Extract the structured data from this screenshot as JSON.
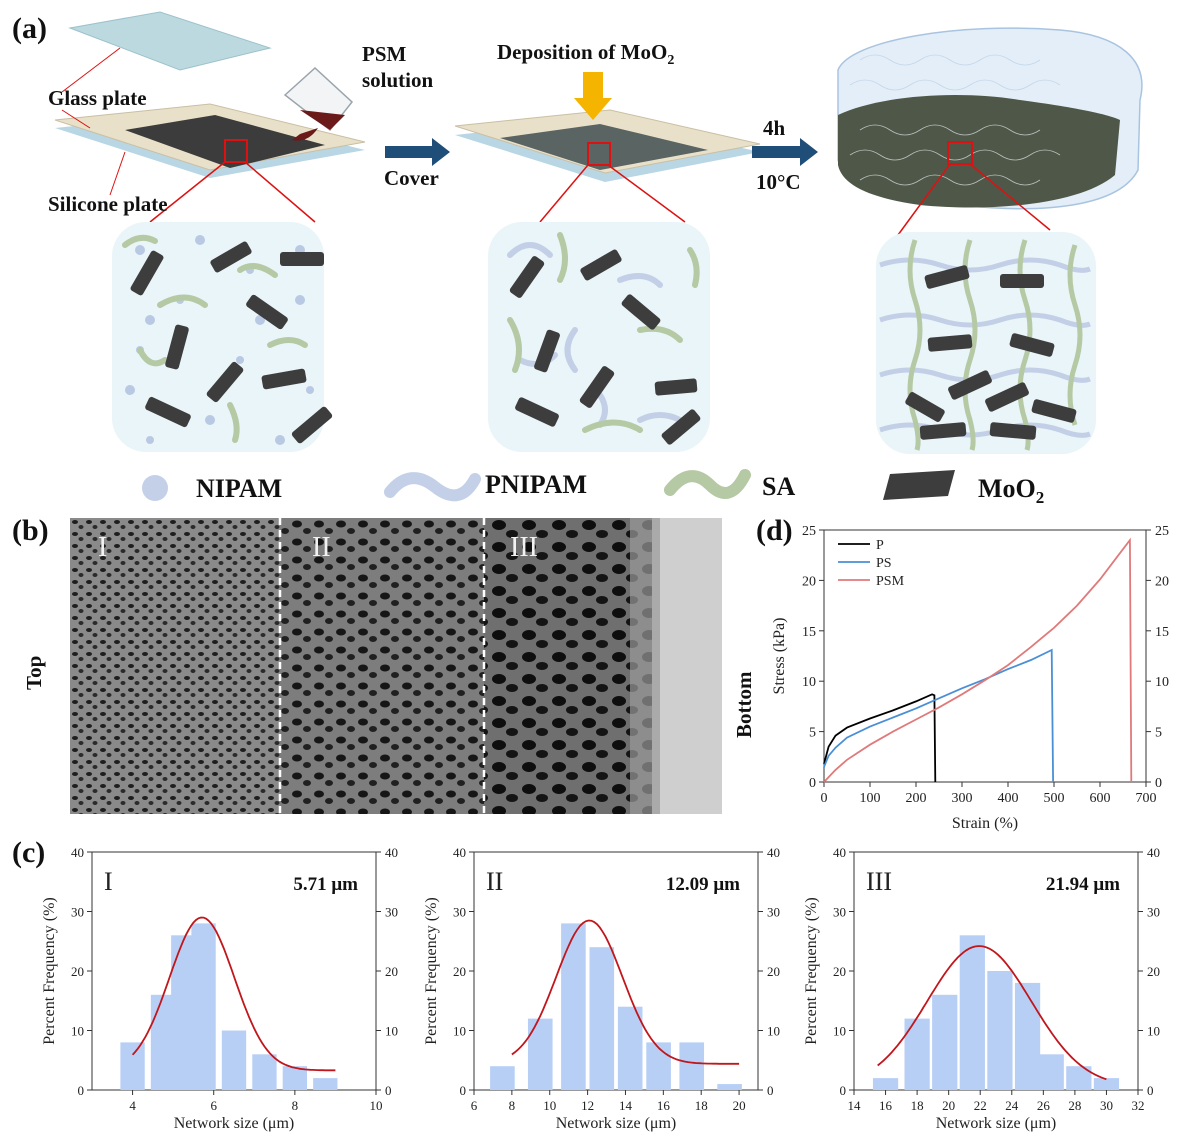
{
  "panel_a": {
    "label": "(a)",
    "glass_plate": "Glass plate",
    "silicone_plate": "Silicone plate",
    "psm_line1": "PSM",
    "psm_line2": "solution",
    "cover": "Cover",
    "deposition": "Deposition of MoO",
    "deposition_sub": "2",
    "time": "4h",
    "temp": "10°C",
    "legend": [
      {
        "name": "NIPAM"
      },
      {
        "name": "PNIPAM"
      },
      {
        "name": "SA"
      },
      {
        "name": "MoO",
        "sub": "2"
      }
    ]
  },
  "panel_b": {
    "label": "(b)",
    "top": "Top",
    "bottom": "Bottom",
    "regions": [
      "I",
      "II",
      "III"
    ]
  },
  "panel_c": {
    "label": "(c)"
  },
  "panel_d": {
    "label": "(d)"
  },
  "colors": {
    "p": "#000000",
    "ps": "#4a8fd6",
    "psm": "#e07a7a",
    "bar": "#b8cff5",
    "fit": "#c0161c",
    "arrow": "#1f4e79",
    "yellow": "#f4b400"
  },
  "chart_data": [
    {
      "type": "line",
      "id": "d",
      "xlabel": "Strain (%)",
      "ylabel": "Stress (kPa)",
      "xlim": [
        0,
        700
      ],
      "ylim": [
        0,
        25
      ],
      "xticks": [
        0,
        100,
        200,
        300,
        400,
        500,
        600,
        700
      ],
      "yticks": [
        0,
        5,
        10,
        15,
        20,
        25
      ],
      "legend_position": "top-left",
      "series": [
        {
          "name": "P",
          "color": "#000000",
          "points": [
            [
              0,
              1.8
            ],
            [
              10,
              3.5
            ],
            [
              25,
              4.6
            ],
            [
              50,
              5.4
            ],
            [
              100,
              6.3
            ],
            [
              150,
              7.1
            ],
            [
              200,
              8.0
            ],
            [
              235,
              8.7
            ],
            [
              240,
              8.6
            ],
            [
              242,
              0
            ]
          ]
        },
        {
          "name": "PS",
          "color": "#4a8fd6",
          "points": [
            [
              0,
              1.5
            ],
            [
              10,
              2.6
            ],
            [
              25,
              3.4
            ],
            [
              50,
              4.4
            ],
            [
              100,
              5.5
            ],
            [
              150,
              6.4
            ],
            [
              200,
              7.3
            ],
            [
              250,
              8.3
            ],
            [
              300,
              9.3
            ],
            [
              350,
              10.2
            ],
            [
              400,
              11.2
            ],
            [
              450,
              12.1
            ],
            [
              495,
              13.1
            ],
            [
              498,
              0
            ]
          ]
        },
        {
          "name": "PSM",
          "color": "#e07a7a",
          "points": [
            [
              0,
              0
            ],
            [
              25,
              1.2
            ],
            [
              50,
              2.2
            ],
            [
              100,
              3.7
            ],
            [
              150,
              5.0
            ],
            [
              200,
              6.2
            ],
            [
              250,
              7.4
            ],
            [
              300,
              8.7
            ],
            [
              350,
              10.1
            ],
            [
              400,
              11.6
            ],
            [
              450,
              13.4
            ],
            [
              500,
              15.3
            ],
            [
              550,
              17.5
            ],
            [
              600,
              20.1
            ],
            [
              640,
              22.5
            ],
            [
              665,
              24.0
            ],
            [
              668,
              0
            ]
          ]
        }
      ]
    },
    {
      "type": "bar",
      "id": "c1",
      "roman": "I",
      "annotation": "5.71 μm",
      "xlabel": "Network size (μm)",
      "ylabel": "Percent Frequency (%)",
      "xlim": [
        3,
        10
      ],
      "ylim": [
        0,
        40
      ],
      "xticks": [
        4,
        6,
        8,
        10
      ],
      "yticks": [
        0,
        10,
        20,
        30,
        40
      ],
      "bar_width": 0.6,
      "bars": [
        [
          4,
          8
        ],
        [
          4.75,
          16
        ],
        [
          5.25,
          26
        ],
        [
          5.75,
          28
        ],
        [
          6.5,
          10
        ],
        [
          7.25,
          6
        ],
        [
          8,
          4
        ],
        [
          8.75,
          2
        ]
      ],
      "fit": {
        "mean": 5.71,
        "sigma": 0.8,
        "amp": 25.7,
        "offset": 3.3,
        "range": [
          4.0,
          9.0
        ]
      }
    },
    {
      "type": "bar",
      "id": "c2",
      "roman": "II",
      "annotation": "12.09 μm",
      "xlabel": "Network size (μm)",
      "ylabel": "Percent Frequency (%)",
      "xlim": [
        6,
        21
      ],
      "ylim": [
        0,
        40
      ],
      "xticks": [
        6,
        8,
        10,
        12,
        14,
        16,
        18,
        20
      ],
      "yticks": [
        0,
        10,
        20,
        30,
        40
      ],
      "bar_width": 1.3,
      "bars": [
        [
          7.5,
          4
        ],
        [
          9.5,
          12
        ],
        [
          11.25,
          28
        ],
        [
          12.75,
          24
        ],
        [
          14.25,
          14
        ],
        [
          15.75,
          8
        ],
        [
          17.5,
          8
        ],
        [
          19.5,
          1
        ]
      ],
      "fit": {
        "mean": 12.09,
        "sigma": 1.75,
        "amp": 24.1,
        "offset": 4.4,
        "range": [
          8.0,
          20.0
        ]
      }
    },
    {
      "type": "bar",
      "id": "c3",
      "roman": "III",
      "annotation": "21.94 μm",
      "xlabel": "Network size (μm)",
      "ylabel": "Percent Frequency (%)",
      "xlim": [
        14,
        32
      ],
      "ylim": [
        0,
        40
      ],
      "xticks": [
        14,
        16,
        18,
        20,
        22,
        24,
        26,
        28,
        30,
        32
      ],
      "yticks": [
        0,
        10,
        20,
        30,
        40
      ],
      "bar_width": 1.6,
      "bars": [
        [
          16,
          2
        ],
        [
          18,
          12
        ],
        [
          19.75,
          16
        ],
        [
          21.5,
          26
        ],
        [
          23.25,
          20
        ],
        [
          25,
          18
        ],
        [
          26.5,
          6
        ],
        [
          28.25,
          4
        ],
        [
          30,
          2
        ]
      ],
      "fit": {
        "mean": 21.94,
        "sigma": 3.3,
        "amp": 23.6,
        "offset": 0.6,
        "range": [
          15.5,
          30.0
        ]
      }
    }
  ]
}
